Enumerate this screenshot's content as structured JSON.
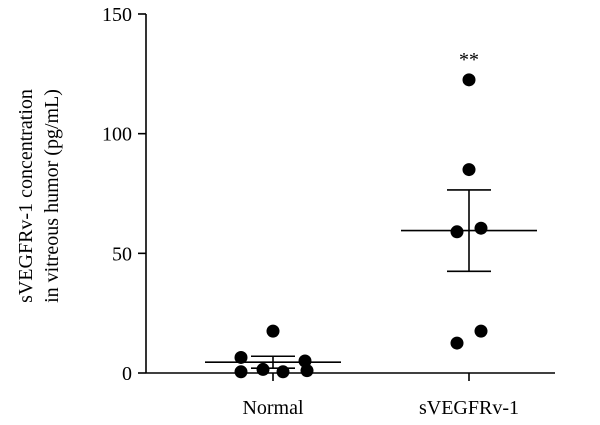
{
  "chart_data": {
    "type": "scatter",
    "title": "",
    "xlabel": "",
    "ylabel_lines": [
      "sVEGFRv-1 concentration",
      "in vitreous humor (pg/mL)"
    ],
    "ylim": [
      0,
      150
    ],
    "yticks": [
      "0",
      "50",
      "100",
      "150"
    ],
    "categories": [
      "Normal",
      "sVEGFRv-1"
    ],
    "series": [
      {
        "category": "Normal",
        "points": [
          17.5,
          6.5,
          5.0,
          0.5,
          1.5,
          0.5,
          1.0
        ],
        "mean": 4.5,
        "error": 2.5
      },
      {
        "category": "sVEGFRv-1",
        "points": [
          122.5,
          85.0,
          60.5,
          59.0,
          17.5,
          12.5
        ],
        "mean": 59.5,
        "error": 17.0
      }
    ],
    "annotations": [
      {
        "category": "sVEGFRv-1",
        "text": "**"
      }
    ]
  }
}
